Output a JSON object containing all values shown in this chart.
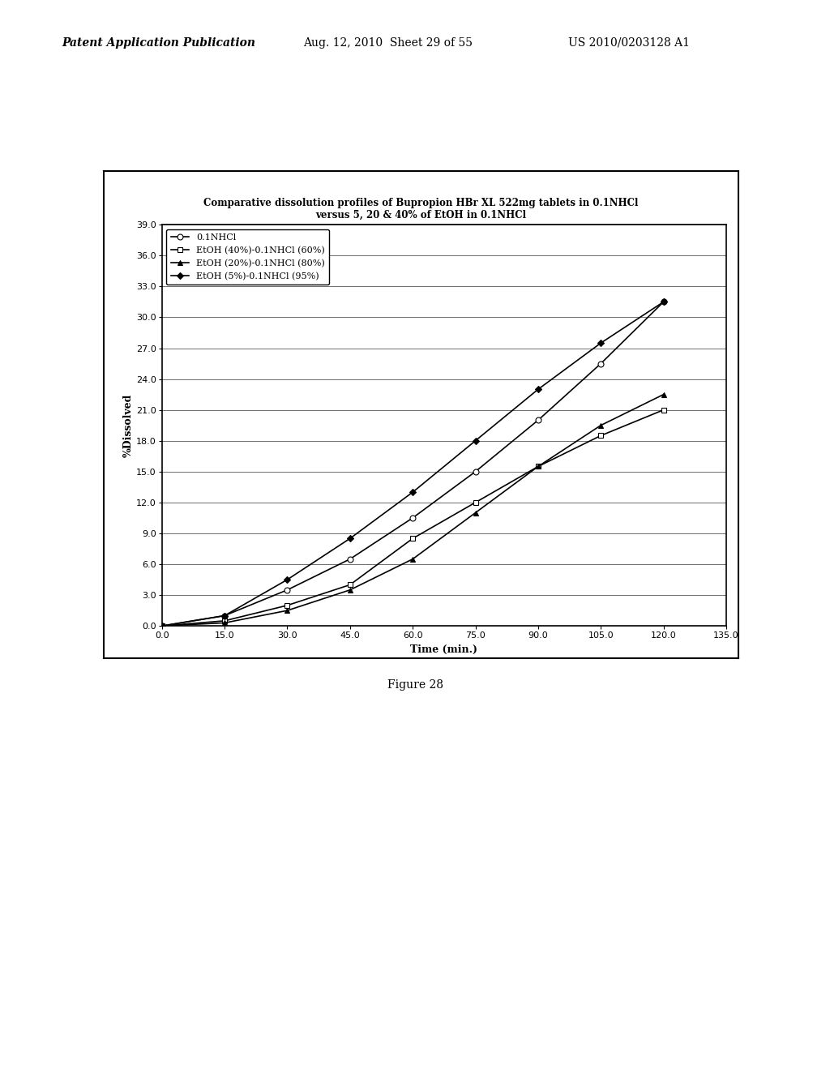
{
  "title_line1": "Comparative dissolution profiles of Bupropion HBr XL 522mg tablets in 0.1NHCl",
  "title_line2": "versus 5, 20 & 40% of EtOH in 0.1NHCl",
  "xlabel": "Time (min.)",
  "ylabel": "%Dissolved",
  "xlim": [
    0.0,
    135.0
  ],
  "ylim": [
    0.0,
    39.0
  ],
  "xticks": [
    0.0,
    15.0,
    30.0,
    45.0,
    60.0,
    75.0,
    90.0,
    105.0,
    120.0,
    135.0
  ],
  "yticks": [
    0.0,
    3.0,
    6.0,
    9.0,
    12.0,
    15.0,
    18.0,
    21.0,
    24.0,
    27.0,
    30.0,
    33.0,
    36.0,
    39.0
  ],
  "series": [
    {
      "label": "0.1NHCl",
      "x": [
        0,
        15,
        30,
        45,
        60,
        75,
        90,
        105,
        120
      ],
      "y": [
        0.0,
        1.0,
        3.5,
        6.5,
        10.5,
        15.0,
        20.0,
        25.5,
        31.5
      ],
      "marker": "o",
      "marker_size": 5,
      "marker_filled": false
    },
    {
      "label": "EtOH (40%)-0.1NHCl (60%)",
      "x": [
        0,
        15,
        30,
        45,
        60,
        75,
        90,
        105,
        120
      ],
      "y": [
        0.0,
        0.5,
        2.0,
        4.0,
        8.5,
        12.0,
        15.5,
        18.5,
        21.0
      ],
      "marker": "s",
      "marker_size": 5,
      "marker_filled": false
    },
    {
      "label": "EtOH (20%)-0.1NHCl (80%)",
      "x": [
        0,
        15,
        30,
        45,
        60,
        75,
        90,
        105,
        120
      ],
      "y": [
        0.0,
        0.3,
        1.5,
        3.5,
        6.5,
        11.0,
        15.5,
        19.5,
        22.5
      ],
      "marker": "^",
      "marker_size": 5,
      "marker_filled": true
    },
    {
      "label": "EtOH (5%)-0.1NHCl (95%)",
      "x": [
        0,
        15,
        30,
        45,
        60,
        75,
        90,
        105,
        120
      ],
      "y": [
        0.0,
        1.0,
        4.5,
        8.5,
        13.0,
        18.0,
        23.0,
        27.5,
        31.5
      ],
      "marker": "D",
      "marker_size": 4,
      "marker_filled": true
    }
  ],
  "figure_caption": "Figure 28",
  "header_left": "Patent Application Publication",
  "header_center": "Aug. 12, 2010  Sheet 29 of 55",
  "header_right": "US 2010/0203128 A1",
  "background_color": "#ffffff"
}
